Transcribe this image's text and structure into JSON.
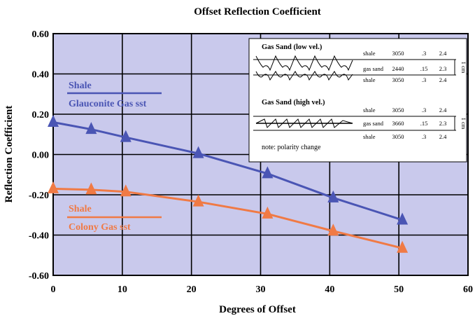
{
  "chart_data": {
    "type": "line",
    "title": "Offset Reflection Coefficient",
    "xlabel": "Degrees of Offset",
    "ylabel": "Reflection Coefficient",
    "xlim": [
      0,
      60
    ],
    "ylim": [
      -0.6,
      0.6
    ],
    "x_ticks": [
      "0",
      "10",
      "20",
      "30",
      "40",
      "50",
      "60"
    ],
    "y_ticks": [
      "0.60",
      "0.40",
      "0.20",
      "0.00",
      "-0.20",
      "-0.40",
      "-0.60"
    ],
    "grid": true,
    "series": [
      {
        "legend_top": "Shale",
        "legend_bottom": "Glauconite Gas sst",
        "color": "#4a55b4",
        "x": [
          0,
          5.5,
          10.5,
          21,
          31,
          40.5,
          50.5
        ],
        "y": [
          0.16,
          0.125,
          0.085,
          0.005,
          -0.095,
          -0.215,
          -0.325
        ]
      },
      {
        "legend_top": "Shale",
        "legend_bottom": "Colony Gas sst",
        "color": "#f07a45",
        "x": [
          0,
          5.5,
          10.5,
          21,
          31,
          40.5,
          50.5
        ],
        "y": [
          -0.17,
          -0.175,
          -0.185,
          -0.235,
          -0.295,
          -0.38,
          -0.465
        ]
      }
    ],
    "plot_background": "#c9c9ec",
    "inset": {
      "panels": [
        {
          "title": "Gas Sand (low vel.)",
          "rows": [
            [
              "shale",
              "3050",
              ".3",
              "2.4"
            ],
            [
              "gas sand",
              "2440",
              ".15",
              "2.3"
            ],
            [
              "shale",
              "3050",
              ".3",
              "2.4"
            ]
          ],
          "scale": "1 cm"
        },
        {
          "title": "Gas Sand (high vel.)",
          "rows": [
            [
              "shale",
              "3050",
              ".3",
              "2.4"
            ],
            [
              "gas sand",
              "3660",
              ".15",
              "2.3"
            ],
            [
              "shale",
              "3050",
              ".3",
              "2.4"
            ]
          ],
          "scale": "1 cm"
        }
      ],
      "note": "note: polarity change"
    }
  }
}
